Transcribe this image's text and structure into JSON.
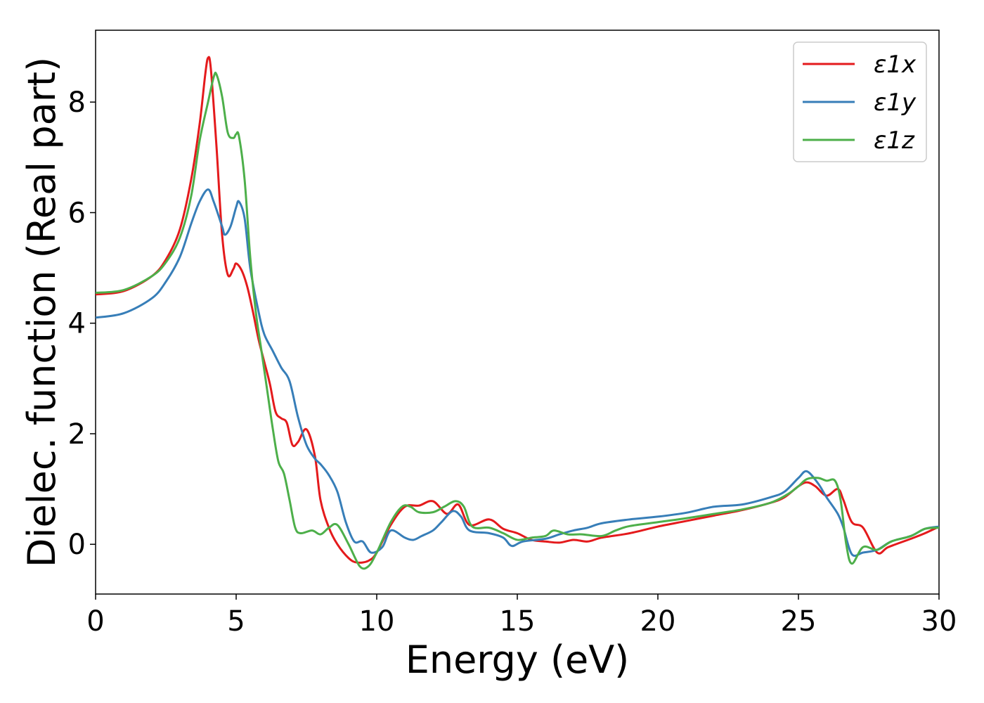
{
  "chart_data": {
    "type": "line",
    "xlabel": "Energy (eV)",
    "ylabel": "Dielec. function (Real part)",
    "xlim": [
      0,
      30
    ],
    "ylim": [
      -0.9,
      9.3
    ],
    "xticks": [
      0,
      5,
      10,
      15,
      20,
      25,
      30
    ],
    "yticks": [
      0,
      2,
      4,
      6,
      8
    ],
    "grid": false,
    "legend_position": "top-right",
    "series": [
      {
        "name": "ε1x",
        "color": "#e41a1c",
        "points": [
          [
            0,
            4.52
          ],
          [
            1,
            4.58
          ],
          [
            2,
            4.85
          ],
          [
            2.5,
            5.15
          ],
          [
            3,
            5.7
          ],
          [
            3.4,
            6.6
          ],
          [
            3.7,
            7.6
          ],
          [
            3.9,
            8.5
          ],
          [
            4.0,
            8.8
          ],
          [
            4.1,
            8.6
          ],
          [
            4.3,
            7.2
          ],
          [
            4.5,
            5.6
          ],
          [
            4.7,
            4.88
          ],
          [
            4.9,
            4.98
          ],
          [
            5.0,
            5.08
          ],
          [
            5.2,
            4.95
          ],
          [
            5.4,
            4.65
          ],
          [
            5.6,
            4.2
          ],
          [
            5.8,
            3.7
          ],
          [
            6.0,
            3.3
          ],
          [
            6.2,
            2.9
          ],
          [
            6.4,
            2.4
          ],
          [
            6.6,
            2.28
          ],
          [
            6.8,
            2.2
          ],
          [
            7.0,
            1.8
          ],
          [
            7.2,
            1.85
          ],
          [
            7.5,
            2.08
          ],
          [
            7.8,
            1.6
          ],
          [
            8.0,
            0.8
          ],
          [
            8.3,
            0.3
          ],
          [
            8.6,
            0.0
          ],
          [
            9.0,
            -0.25
          ],
          [
            9.3,
            -0.33
          ],
          [
            9.7,
            -0.3
          ],
          [
            10.0,
            -0.15
          ],
          [
            10.5,
            0.35
          ],
          [
            11.0,
            0.68
          ],
          [
            11.5,
            0.7
          ],
          [
            12.0,
            0.78
          ],
          [
            12.5,
            0.55
          ],
          [
            12.9,
            0.72
          ],
          [
            13.3,
            0.35
          ],
          [
            14.0,
            0.45
          ],
          [
            14.5,
            0.28
          ],
          [
            15.0,
            0.2
          ],
          [
            15.5,
            0.08
          ],
          [
            16.0,
            0.05
          ],
          [
            16.5,
            0.03
          ],
          [
            17.0,
            0.08
          ],
          [
            17.5,
            0.05
          ],
          [
            18.0,
            0.12
          ],
          [
            19.0,
            0.2
          ],
          [
            20.0,
            0.32
          ],
          [
            21.0,
            0.42
          ],
          [
            22.0,
            0.52
          ],
          [
            23.0,
            0.62
          ],
          [
            24.0,
            0.75
          ],
          [
            24.5,
            0.85
          ],
          [
            25.0,
            1.05
          ],
          [
            25.3,
            1.12
          ],
          [
            25.6,
            1.05
          ],
          [
            26.0,
            0.88
          ],
          [
            26.4,
            1.0
          ],
          [
            26.6,
            0.8
          ],
          [
            26.9,
            0.4
          ],
          [
            27.3,
            0.3
          ],
          [
            27.8,
            -0.15
          ],
          [
            28.2,
            -0.05
          ],
          [
            29.0,
            0.1
          ],
          [
            29.5,
            0.2
          ],
          [
            30.0,
            0.32
          ]
        ]
      },
      {
        "name": "ε1y",
        "color": "#377eb8",
        "points": [
          [
            0,
            4.1
          ],
          [
            1,
            4.18
          ],
          [
            2,
            4.45
          ],
          [
            2.5,
            4.75
          ],
          [
            3,
            5.2
          ],
          [
            3.4,
            5.8
          ],
          [
            3.7,
            6.2
          ],
          [
            4.0,
            6.42
          ],
          [
            4.2,
            6.2
          ],
          [
            4.5,
            5.75
          ],
          [
            4.6,
            5.6
          ],
          [
            4.8,
            5.75
          ],
          [
            5.0,
            6.1
          ],
          [
            5.1,
            6.2
          ],
          [
            5.3,
            5.9
          ],
          [
            5.5,
            5.0
          ],
          [
            5.8,
            4.2
          ],
          [
            6.0,
            3.8
          ],
          [
            6.3,
            3.5
          ],
          [
            6.6,
            3.2
          ],
          [
            6.9,
            2.95
          ],
          [
            7.2,
            2.3
          ],
          [
            7.5,
            1.8
          ],
          [
            7.8,
            1.55
          ],
          [
            8.0,
            1.45
          ],
          [
            8.3,
            1.25
          ],
          [
            8.6,
            0.95
          ],
          [
            8.9,
            0.4
          ],
          [
            9.2,
            0.05
          ],
          [
            9.5,
            0.05
          ],
          [
            9.8,
            -0.15
          ],
          [
            10.2,
            -0.05
          ],
          [
            10.5,
            0.25
          ],
          [
            11.0,
            0.12
          ],
          [
            11.3,
            0.08
          ],
          [
            11.6,
            0.15
          ],
          [
            12.0,
            0.25
          ],
          [
            12.3,
            0.4
          ],
          [
            12.7,
            0.6
          ],
          [
            13.0,
            0.5
          ],
          [
            13.3,
            0.25
          ],
          [
            14.0,
            0.2
          ],
          [
            14.5,
            0.12
          ],
          [
            14.8,
            -0.03
          ],
          [
            15.2,
            0.05
          ],
          [
            16.0,
            0.1
          ],
          [
            16.5,
            0.18
          ],
          [
            17.0,
            0.25
          ],
          [
            17.5,
            0.3
          ],
          [
            18.0,
            0.38
          ],
          [
            19.0,
            0.45
          ],
          [
            20.0,
            0.5
          ],
          [
            21.0,
            0.57
          ],
          [
            22.0,
            0.68
          ],
          [
            23.0,
            0.72
          ],
          [
            24.0,
            0.85
          ],
          [
            24.5,
            0.95
          ],
          [
            25.0,
            1.2
          ],
          [
            25.3,
            1.32
          ],
          [
            25.7,
            1.1
          ],
          [
            26.0,
            0.85
          ],
          [
            26.4,
            0.55
          ],
          [
            26.6,
            0.3
          ],
          [
            26.9,
            -0.18
          ],
          [
            27.3,
            -0.15
          ],
          [
            27.8,
            -0.1
          ],
          [
            28.3,
            0.05
          ],
          [
            29.0,
            0.15
          ],
          [
            29.5,
            0.28
          ],
          [
            30.0,
            0.32
          ]
        ]
      },
      {
        "name": "ε1z",
        "color": "#4daf4a",
        "points": [
          [
            0,
            4.55
          ],
          [
            1,
            4.6
          ],
          [
            2,
            4.85
          ],
          [
            2.5,
            5.1
          ],
          [
            3,
            5.55
          ],
          [
            3.4,
            6.3
          ],
          [
            3.7,
            7.3
          ],
          [
            4.0,
            8.0
          ],
          [
            4.2,
            8.45
          ],
          [
            4.3,
            8.5
          ],
          [
            4.5,
            8.1
          ],
          [
            4.7,
            7.45
          ],
          [
            4.9,
            7.35
          ],
          [
            5.0,
            7.42
          ],
          [
            5.1,
            7.38
          ],
          [
            5.3,
            6.6
          ],
          [
            5.5,
            5.2
          ],
          [
            5.7,
            4.2
          ],
          [
            5.9,
            3.5
          ],
          [
            6.1,
            2.8
          ],
          [
            6.3,
            2.1
          ],
          [
            6.5,
            1.5
          ],
          [
            6.7,
            1.28
          ],
          [
            6.9,
            0.8
          ],
          [
            7.1,
            0.3
          ],
          [
            7.3,
            0.2
          ],
          [
            7.7,
            0.25
          ],
          [
            8.0,
            0.18
          ],
          [
            8.3,
            0.3
          ],
          [
            8.6,
            0.35
          ],
          [
            9.0,
            0.0
          ],
          [
            9.4,
            -0.4
          ],
          [
            9.7,
            -0.4
          ],
          [
            10.0,
            -0.15
          ],
          [
            10.5,
            0.4
          ],
          [
            10.9,
            0.68
          ],
          [
            11.2,
            0.68
          ],
          [
            11.5,
            0.58
          ],
          [
            12.0,
            0.58
          ],
          [
            12.4,
            0.68
          ],
          [
            12.8,
            0.78
          ],
          [
            13.1,
            0.68
          ],
          [
            13.4,
            0.32
          ],
          [
            14.0,
            0.3
          ],
          [
            14.5,
            0.2
          ],
          [
            15.0,
            0.08
          ],
          [
            15.5,
            0.12
          ],
          [
            16.0,
            0.15
          ],
          [
            16.3,
            0.25
          ],
          [
            16.8,
            0.18
          ],
          [
            17.3,
            0.18
          ],
          [
            18.0,
            0.15
          ],
          [
            18.5,
            0.25
          ],
          [
            19.0,
            0.33
          ],
          [
            20.0,
            0.4
          ],
          [
            21.0,
            0.47
          ],
          [
            22.0,
            0.55
          ],
          [
            23.0,
            0.63
          ],
          [
            24.0,
            0.75
          ],
          [
            24.6,
            0.9
          ],
          [
            25.0,
            1.05
          ],
          [
            25.3,
            1.18
          ],
          [
            25.7,
            1.2
          ],
          [
            26.0,
            1.15
          ],
          [
            26.3,
            1.15
          ],
          [
            26.5,
            0.8
          ],
          [
            26.7,
            0.0
          ],
          [
            26.9,
            -0.35
          ],
          [
            27.3,
            -0.05
          ],
          [
            27.8,
            -0.1
          ],
          [
            28.3,
            0.05
          ],
          [
            29.0,
            0.15
          ],
          [
            29.5,
            0.28
          ],
          [
            30.0,
            0.3
          ]
        ]
      }
    ]
  }
}
